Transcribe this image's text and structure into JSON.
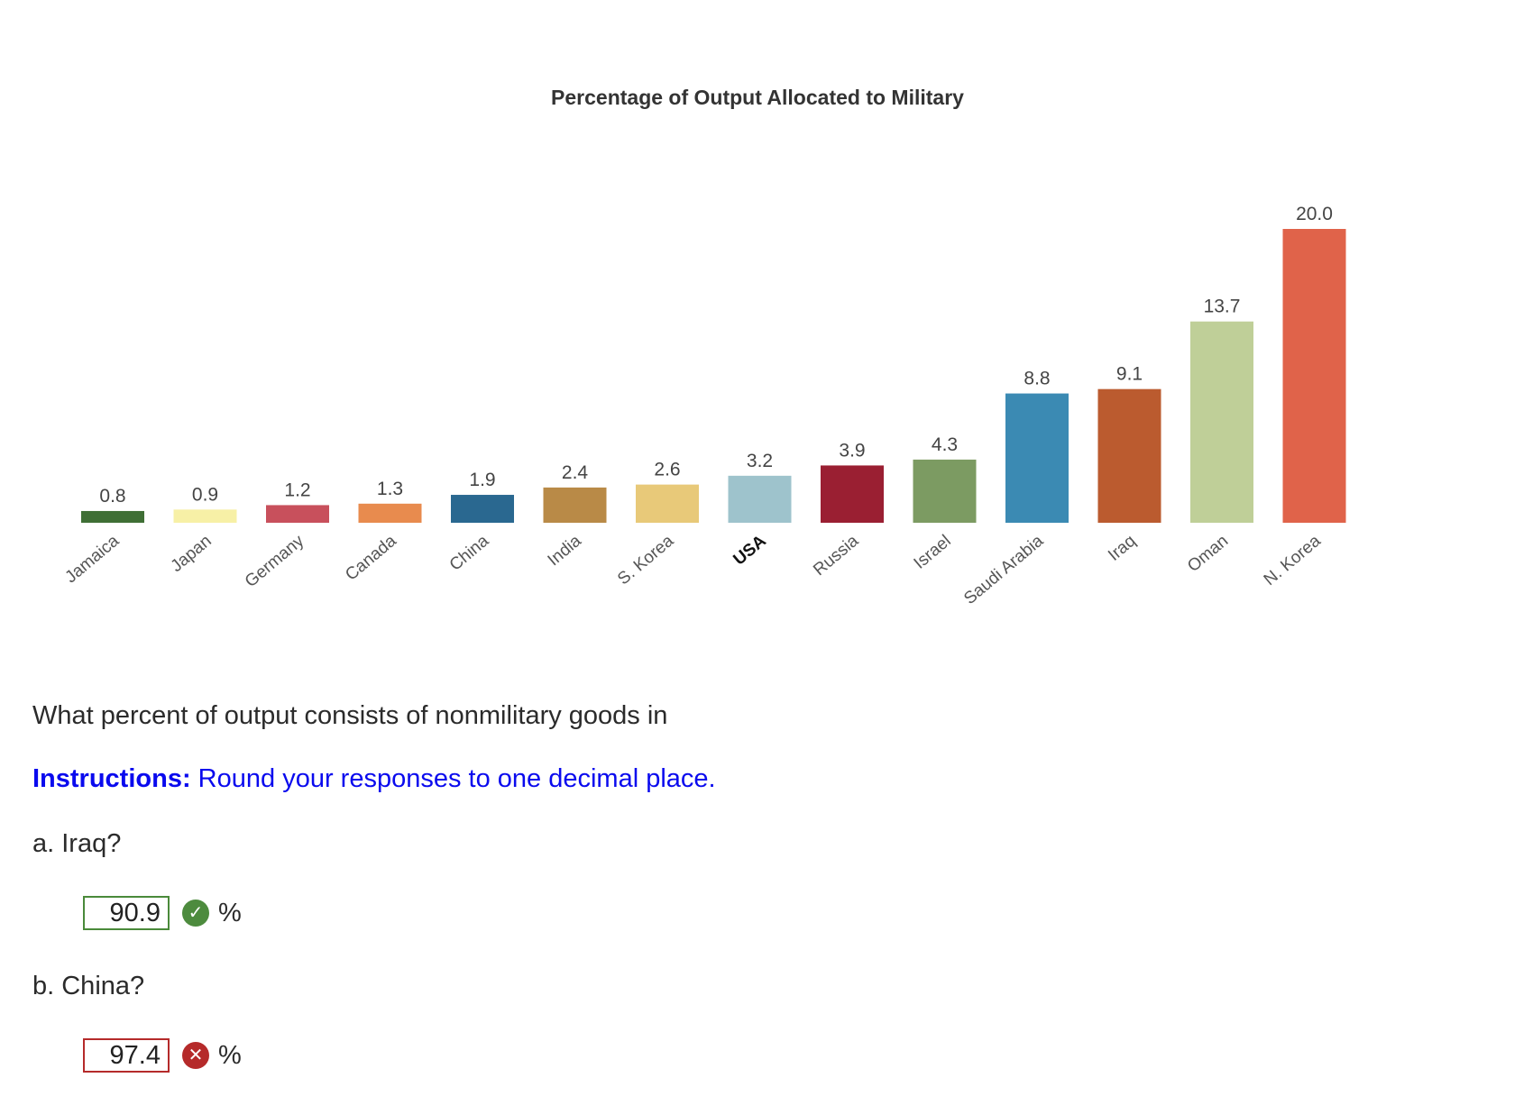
{
  "chart_data": {
    "type": "bar",
    "title": "Percentage of Output Allocated to Military",
    "categories": [
      "Jamaica",
      "Japan",
      "Germany",
      "Canada",
      "China",
      "India",
      "S. Korea",
      "USA",
      "Russia",
      "Israel",
      "Saudi Arabia",
      "Iraq",
      "Oman",
      "N. Korea"
    ],
    "values": [
      0.8,
      0.9,
      1.2,
      1.3,
      1.9,
      2.4,
      2.6,
      3.2,
      3.9,
      4.3,
      8.8,
      9.1,
      13.7,
      20.0
    ],
    "value_labels": [
      "0.8",
      "0.9",
      "1.2",
      "1.3",
      "1.9",
      "2.4",
      "2.6",
      "3.2",
      "3.9",
      "4.3",
      "8.8",
      "9.1",
      "13.7",
      "20.0"
    ],
    "colors": [
      "#3f6f35",
      "#f7f0a6",
      "#c8505c",
      "#e88b4e",
      "#2a6890",
      "#b98a47",
      "#e8c979",
      "#9ec3cc",
      "#9a1f32",
      "#7c9b62",
      "#3b8ab3",
      "#bb5b2f",
      "#bfcf98",
      "#e0634a"
    ],
    "bold_categories": [
      "USA"
    ],
    "xlabel": "",
    "ylabel": "",
    "ylim": [
      0,
      20
    ],
    "grid": false,
    "legend": "none"
  },
  "question": {
    "prompt": "What percent of output consists of nonmilitary goods in",
    "instructions_label": "Instructions:",
    "instructions_text": " Round your responses to one decimal place.",
    "part_a_label": "a. Iraq?",
    "part_b_label": "b. China?",
    "answer_a_value": "90.9",
    "answer_b_value": "97.4",
    "unit": "%",
    "answer_a_status_icon": "check-circle-icon",
    "answer_b_status_icon": "x-circle-icon",
    "correct_color": "#4d8b3e",
    "incorrect_color": "#b52a2a"
  }
}
